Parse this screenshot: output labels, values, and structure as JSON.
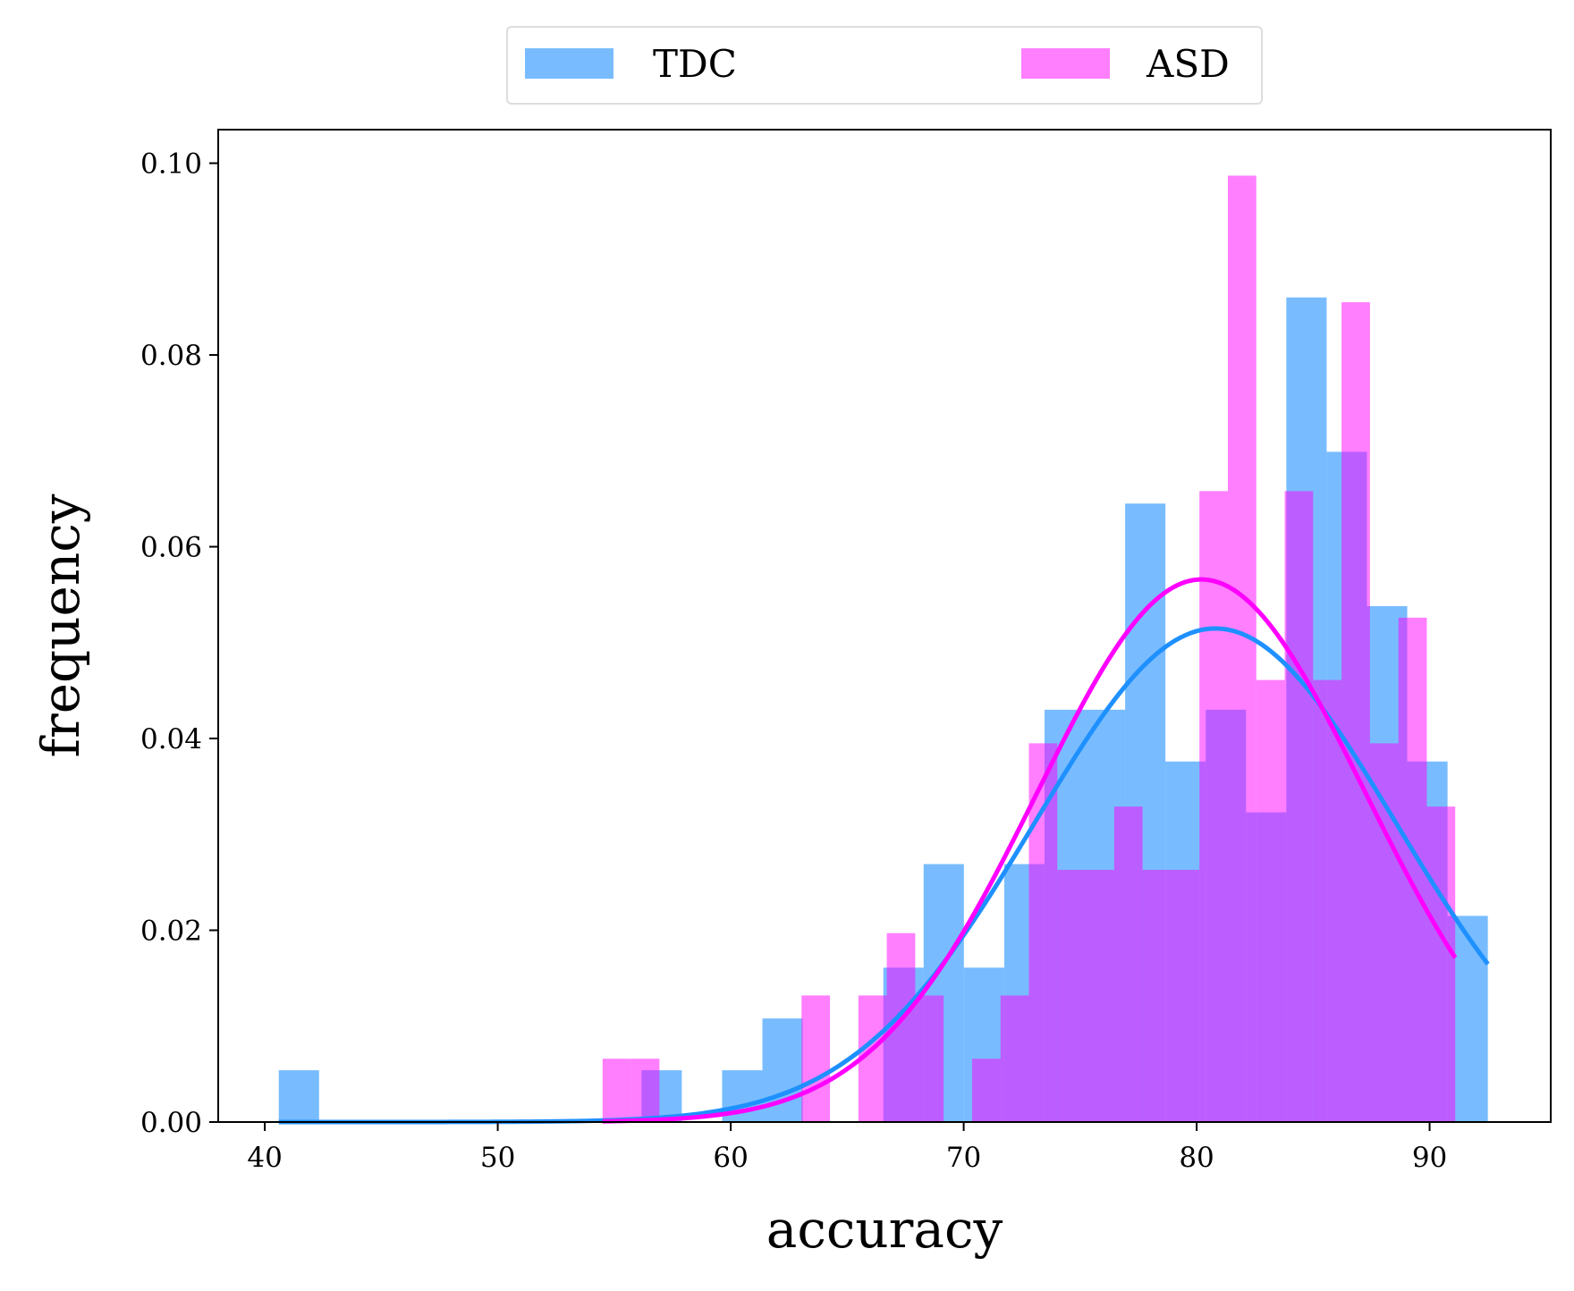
{
  "chart_data": {
    "type": "bar",
    "title": "",
    "xlabel": "accuracy",
    "ylabel": "frequency",
    "xlim": [
      38.0,
      95.2
    ],
    "ylim": [
      0,
      0.1035
    ],
    "xticks": [
      40,
      50,
      60,
      70,
      80,
      90
    ],
    "yticks": [
      0.0,
      0.02,
      0.04,
      0.06,
      0.08,
      0.1
    ],
    "xtick_labels": [
      "40",
      "50",
      "60",
      "70",
      "80",
      "90"
    ],
    "ytick_labels": [
      "0.00",
      "0.02",
      "0.04",
      "0.06",
      "0.08",
      "0.10"
    ],
    "grid": false,
    "legend": {
      "placement": "top-center, above plot",
      "columns": 2
    },
    "series": [
      {
        "name": "TDC",
        "kind": "histogram",
        "color": "#1E90FF",
        "opacity": 0.6,
        "bin_start": 40.6,
        "bin_width": 1.73,
        "values": [
          0.0054,
          0,
          0,
          0,
          0,
          0,
          0,
          0,
          0,
          0.0054,
          0,
          0.0054,
          0.0108,
          0,
          0,
          0.0161,
          0.0269,
          0.0161,
          0.0269,
          0.043,
          0.043,
          0.0645,
          0.0376,
          0.043,
          0.0323,
          0.086,
          0.0699,
          0.0538,
          0.0376,
          0.0215
        ],
        "fit_mean": 80.8,
        "fit_std": 7.75
      },
      {
        "name": "ASD",
        "kind": "histogram",
        "color": "#FF00FF",
        "opacity": 0.5,
        "bin_start": 54.5,
        "bin_width": 1.22,
        "values": [
          0.0066,
          0.0066,
          0,
          0,
          0,
          0,
          0,
          0.0132,
          0,
          0.0132,
          0.0197,
          0.0132,
          0,
          0.0066,
          0.0132,
          0.0395,
          0.0263,
          0.0263,
          0.0329,
          0.0263,
          0.0263,
          0.0658,
          0.0987,
          0.0461,
          0.0658,
          0.0461,
          0.0855,
          0.0395,
          0.0526,
          0.0329
        ],
        "fit_mean": 80.2,
        "fit_std": 7.05
      }
    ]
  }
}
